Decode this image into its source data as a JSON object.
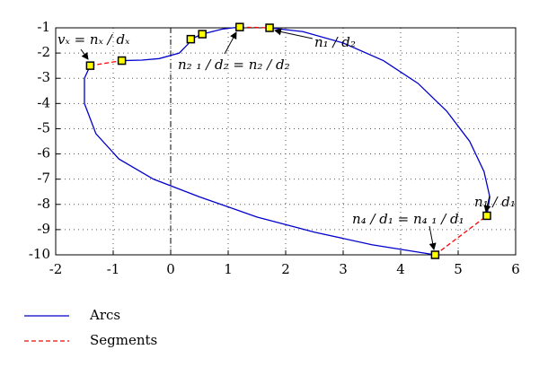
{
  "chart_data": {
    "type": "line",
    "xlim": [
      -2,
      6
    ],
    "xticks": [
      -2,
      -1,
      0,
      1,
      2,
      3,
      4,
      5,
      6
    ],
    "ylim": [
      -10,
      -1
    ],
    "yticks": [
      -10,
      -9,
      -8,
      -7,
      -6,
      -5,
      -4,
      -3,
      -2,
      -1
    ],
    "grid": true,
    "series": [
      {
        "name": "Arcs",
        "color": "#0000cc",
        "x": [
          -0.85,
          -0.5,
          -0.2,
          0.15,
          0.3,
          0.35,
          null,
          0.35,
          0.55,
          null,
          0.55,
          0.9,
          1.2,
          null,
          1.72,
          2.3,
          3,
          3.7,
          4.3,
          4.8,
          5.2,
          5.45,
          5.55,
          5.5,
          null,
          4.6,
          3.5,
          2.5,
          1.5,
          0.5,
          -0.3,
          -0.9,
          -1.3,
          -1.5,
          -1.5,
          -1.4
        ],
        "values": [
          -2.3,
          -2.28,
          -2.22,
          -2.0,
          -1.65,
          -1.45,
          null,
          -1.45,
          -1.25,
          null,
          -1.25,
          -1.05,
          -0.97,
          null,
          -1.0,
          -1.15,
          -1.6,
          -2.3,
          -3.2,
          -4.3,
          -5.5,
          -6.7,
          -7.7,
          -8.45,
          null,
          -10,
          -9.6,
          -9.1,
          -8.5,
          -7.7,
          -7.0,
          -6.2,
          -5.2,
          -4.0,
          -3.0,
          -2.5
        ]
      },
      {
        "name": "Segments",
        "color": "#ff0000",
        "x": [
          -1.4,
          -0.85,
          null,
          1.2,
          1.72,
          null,
          4.6,
          5.5
        ],
        "values": [
          -2.5,
          -2.3,
          null,
          -0.97,
          -1.0,
          null,
          -10,
          -8.45
        ]
      }
    ],
    "points": {
      "color": "#ffff00",
      "x": [
        -1.4,
        -0.85,
        0.35,
        0.55,
        1.2,
        1.72,
        4.6,
        5.5
      ],
      "values": [
        -2.5,
        -2.3,
        -1.45,
        -1.25,
        -0.97,
        -1.0,
        -10,
        -8.45
      ]
    },
    "annotations": [
      "vₓ = nₓ / dₓ",
      "n₁ / d₂",
      "n₂ ₁ / d₂ = n₂ / d₂",
      "n₁ / d₁",
      "n₄ / d₁ = n₄ ₁ / d₁"
    ]
  }
}
